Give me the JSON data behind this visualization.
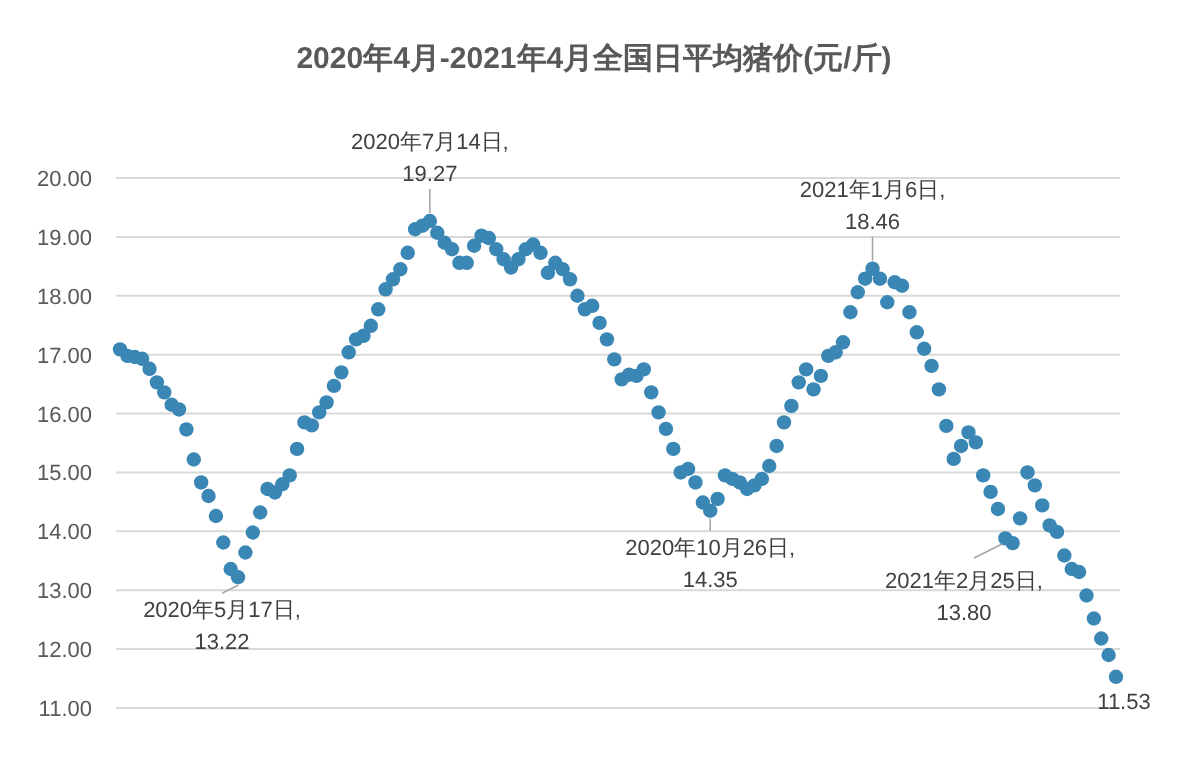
{
  "chart_data": {
    "type": "scatter",
    "title": "2020年4月-2021年4月全国日平均猪价(元/斤)",
    "categories": [
      null,
      null,
      null,
      null,
      null,
      null,
      null,
      null,
      null,
      null,
      null,
      null,
      null,
      null,
      null,
      null,
      null,
      null,
      null,
      null,
      null,
      null,
      null,
      null,
      null,
      null,
      null,
      null,
      null,
      null,
      null,
      null,
      null,
      null,
      null,
      null,
      null,
      null,
      null,
      null,
      null,
      null,
      null,
      null,
      null,
      null,
      null,
      null,
      null,
      null,
      null,
      null,
      null,
      null,
      null,
      null,
      null,
      null,
      null,
      null,
      null,
      null,
      null,
      null,
      null,
      null,
      null,
      null,
      null,
      null,
      null,
      null,
      null,
      null,
      null,
      null,
      null,
      null,
      null,
      null,
      null,
      null,
      null,
      null,
      null,
      null,
      null,
      null,
      null,
      null,
      null,
      null,
      null,
      null,
      null,
      null,
      null,
      null,
      null,
      null,
      null,
      null,
      null,
      null,
      null,
      null,
      null,
      null,
      null,
      null,
      null,
      null,
      null,
      null,
      null,
      null,
      null,
      null,
      null,
      null,
      null,
      null,
      null,
      null,
      null,
      null,
      null,
      null,
      null,
      null,
      null,
      null,
      null,
      null,
      null,
      null
    ],
    "series": [
      {
        "color": "#3a87b5",
        "values": [
          17.09,
          16.98,
          16.96,
          16.93,
          16.76,
          16.53,
          16.36,
          16.15,
          16.07,
          15.73,
          15.22,
          14.83,
          14.6,
          14.26,
          13.81,
          13.36,
          13.22,
          13.64,
          13.98,
          14.32,
          14.72,
          14.66,
          14.8,
          14.95,
          15.4,
          15.85,
          15.8,
          16.02,
          16.19,
          16.47,
          16.7,
          17.04,
          17.26,
          17.32,
          17.49,
          17.77,
          18.11,
          18.28,
          18.45,
          18.73,
          19.13,
          19.19,
          19.27,
          19.07,
          18.9,
          18.79,
          18.56,
          18.56,
          18.85,
          19.02,
          18.98,
          18.79,
          18.62,
          18.48,
          18.62,
          18.79,
          18.87,
          18.73,
          18.39,
          18.56,
          18.45,
          18.28,
          18.0,
          17.77,
          17.83,
          17.54,
          17.26,
          16.92,
          16.58,
          16.66,
          16.64,
          16.75,
          16.36,
          16.02,
          15.74,
          15.4,
          15.0,
          15.06,
          14.83,
          14.49,
          14.35,
          14.55,
          14.95,
          14.89,
          14.83,
          14.72,
          14.78,
          14.89,
          15.11,
          15.45,
          15.85,
          16.13,
          16.53,
          16.75,
          16.41,
          16.64,
          16.98,
          17.04,
          17.21,
          17.72,
          18.06,
          18.29,
          18.46,
          18.29,
          17.89,
          18.23,
          18.17,
          17.72,
          17.38,
          17.1,
          16.81,
          16.41,
          15.79,
          15.23,
          15.45,
          15.68,
          15.51,
          14.95,
          14.67,
          14.38,
          13.88,
          13.8,
          14.22,
          15.0,
          14.78,
          14.44,
          14.1,
          13.99,
          13.59,
          13.36,
          13.31,
          12.91,
          12.52,
          12.18,
          11.9,
          11.53
        ]
      }
    ],
    "ylim": [
      11,
      20
    ],
    "yticks": [
      {
        "value": 11,
        "label": "11.00"
      },
      {
        "value": 12,
        "label": "12.00"
      },
      {
        "value": 13,
        "label": "13.00"
      },
      {
        "value": 14,
        "label": "14.00"
      },
      {
        "value": 15,
        "label": "15.00"
      },
      {
        "value": 16,
        "label": "16.00"
      },
      {
        "value": 17,
        "label": "17.00"
      },
      {
        "value": 18,
        "label": "18.00"
      },
      {
        "value": 19,
        "label": "19.00"
      },
      {
        "value": 20,
        "label": "20.00"
      }
    ],
    "grid": "y",
    "marker": "circle",
    "annotations": [
      {
        "text": "2020年5月17日,\n13.22",
        "y": 13.22
      },
      {
        "text": "2020年7月14日,\n19.27",
        "y": 19.27
      },
      {
        "text": "2020年10月26日,\n14.35",
        "y": 14.35
      },
      {
        "text": "2021年1月6日,\n18.46",
        "y": 18.46
      },
      "2021年2月25日,\n13.80",
      {
        "text": "11.53",
        "y": 11.53
      }
    ]
  }
}
